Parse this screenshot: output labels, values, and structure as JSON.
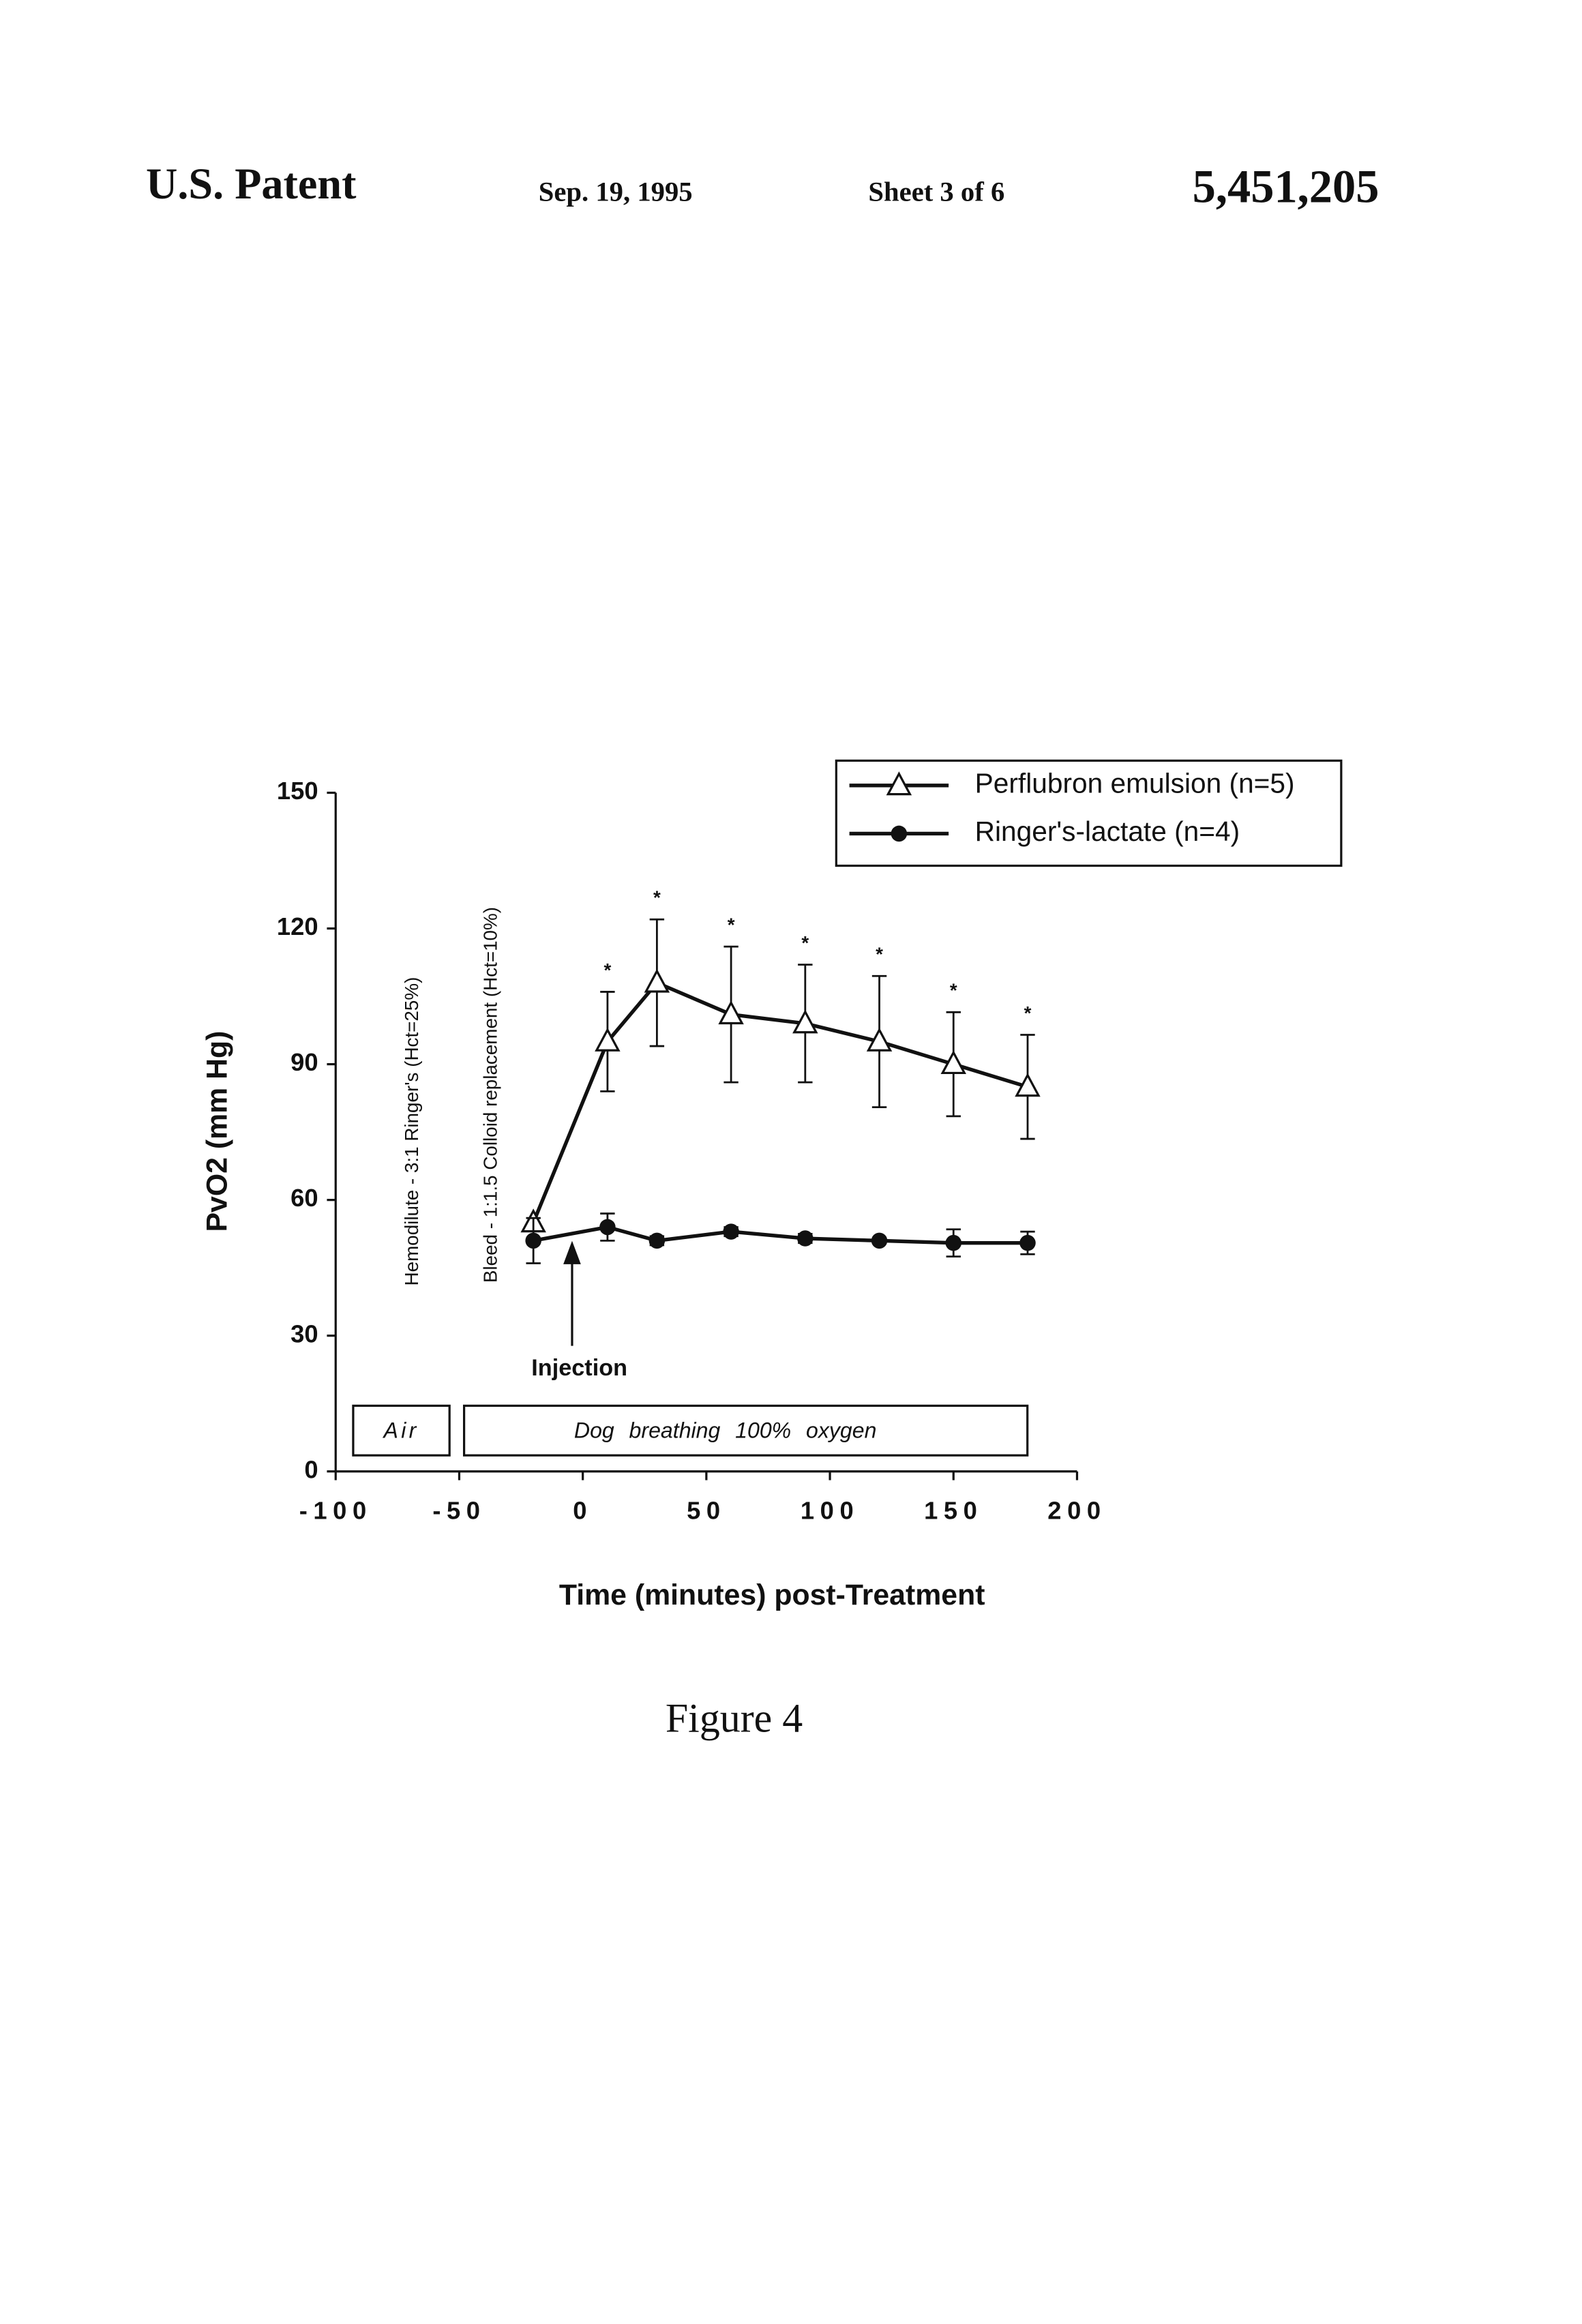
{
  "header": {
    "left": "U.S. Patent",
    "date": "Sep. 19, 1995",
    "sheet": "Sheet 3 of 6",
    "number": "5,451,205"
  },
  "chart_data": {
    "type": "line",
    "x": [
      -20,
      10,
      30,
      60,
      90,
      120,
      150,
      180
    ],
    "series": [
      {
        "name": "Perflubron emulsion (n=5)",
        "color": "#111111",
        "marker": "triangle",
        "values": [
          55,
          95,
          108,
          101,
          99,
          95,
          90,
          85
        ],
        "errors": [
          null,
          11,
          14,
          15,
          13,
          14.5,
          11.5,
          11.5
        ],
        "significance": [
          null,
          "*",
          "*",
          "*",
          "*",
          "*",
          "*",
          "*"
        ]
      },
      {
        "name": "Ringer's-lactate (n=4)",
        "color": "#111111",
        "marker": "circle",
        "values": [
          51,
          54,
          51,
          53,
          51.5,
          51,
          50.5,
          50.5
        ],
        "errors": [
          5,
          3,
          1,
          1,
          1,
          0.5,
          3,
          2.5
        ]
      }
    ],
    "xlim": [
      -100,
      200
    ],
    "ylim": [
      0,
      150
    ],
    "xticks": [
      -100,
      -50,
      0,
      50,
      100,
      150,
      200
    ],
    "yticks": [
      0,
      30,
      60,
      90,
      120,
      150
    ],
    "xlabel": "Time (minutes) post-Treatment",
    "ylabel": "PvO2 (mm Hg)",
    "annotations": [
      "Hemodilute - 3:1 Ringer's (Hct=25%)",
      "Bleed - 1:1.5 Colloid replacement (Hct=10%)",
      "Injection"
    ],
    "phases": [
      "Air",
      "Dog breathing 100% oxygen"
    ]
  },
  "caption": "Figure 4"
}
